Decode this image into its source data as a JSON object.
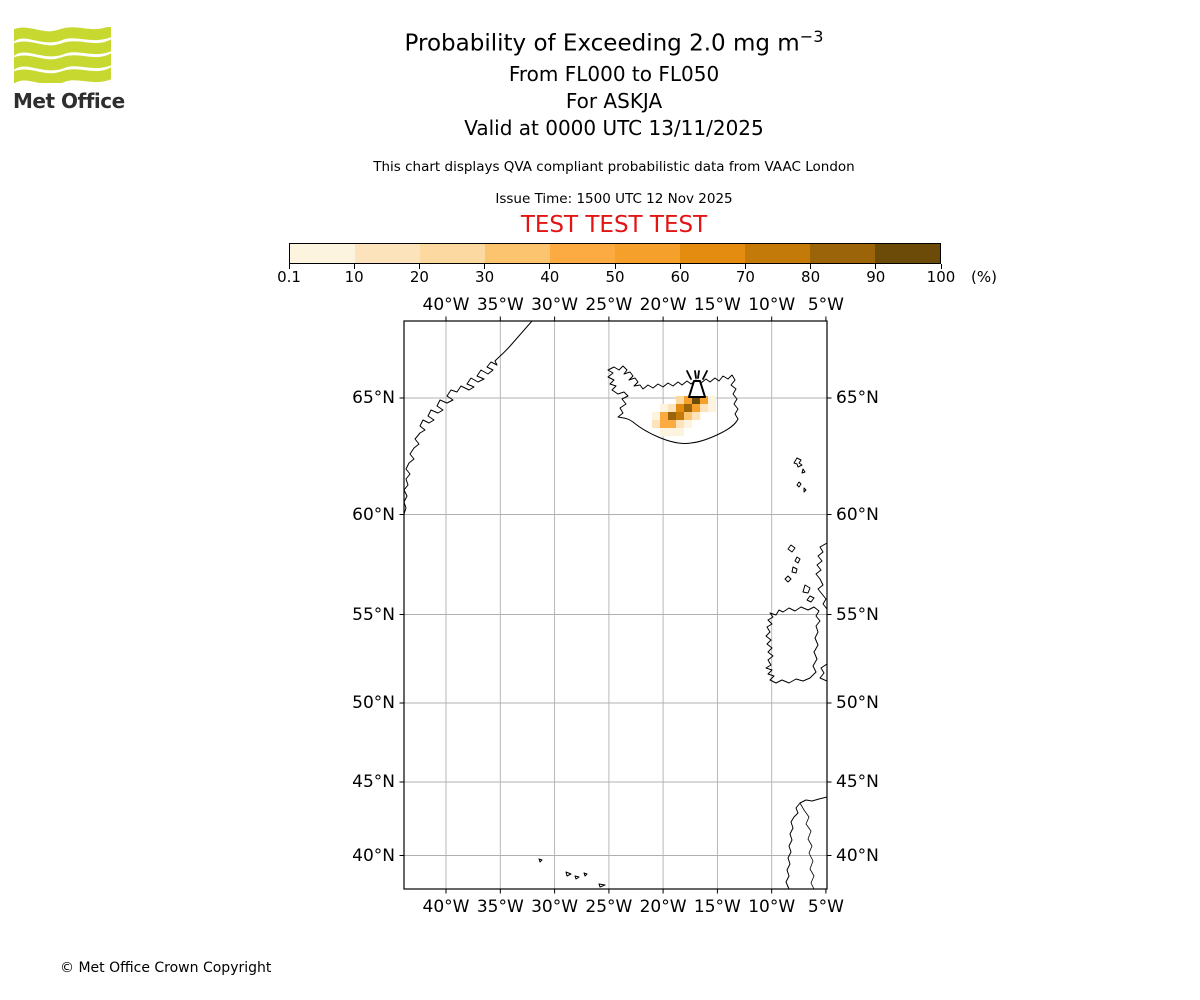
{
  "header": {
    "logo_text": "Met Office",
    "logo_green": "#c7d930",
    "title": "Probability of Exceeding 2.0 mg m",
    "title_sup": "−3",
    "subtitle1": "From FL000 to FL050",
    "subtitle2": "For ASKJA",
    "subtitle3": "Valid at 0000 UTC 13/11/2025",
    "description": "This chart displays QVA compliant probabilistic data from VAAC London",
    "issue_time": "Issue Time: 1500 UTC 12 Nov 2025",
    "test_banner": "TEST TEST TEST",
    "test_banner_color": "#e31414"
  },
  "chart_data": {
    "type": "heatmap",
    "title": "Probability of Exceeding 2.0 mg m⁻³ from FL000 to FL050 for ASKJA, valid 0000 UTC 13/11/2025",
    "legend_unit": "(%)",
    "colorbar": {
      "tick_labels": [
        "0.1",
        "10",
        "20",
        "30",
        "40",
        "50",
        "60",
        "70",
        "80",
        "90",
        "100"
      ],
      "unit": "(%)",
      "colors": [
        "#fdf4e0",
        "#fce3bb",
        "#fdd9a2",
        "#fdc470",
        "#fbab42",
        "#f5a02b",
        "#e38c10",
        "#c47a08",
        "#9c6409",
        "#6b4b07"
      ]
    },
    "volcano_name": "ASKJA",
    "plume_cells_note": "grid cells southwest of ASKJA volcano, level index = colorbar bucket (0 = 0.1-10% ... 9 = 90-100%)",
    "plume_cells": [
      {
        "c": 5,
        "r": 0,
        "l": 3
      },
      {
        "c": 3,
        "r": 1,
        "l": 2
      },
      {
        "c": 4,
        "r": 1,
        "l": 5
      },
      {
        "c": 5,
        "r": 1,
        "l": 9
      },
      {
        "c": 6,
        "r": 1,
        "l": 5
      },
      {
        "c": 7,
        "r": 1,
        "l": 0
      },
      {
        "c": 1,
        "r": 2,
        "l": 0
      },
      {
        "c": 2,
        "r": 2,
        "l": 1
      },
      {
        "c": 3,
        "r": 2,
        "l": 6
      },
      {
        "c": 4,
        "r": 2,
        "l": 8
      },
      {
        "c": 5,
        "r": 2,
        "l": 5
      },
      {
        "c": 6,
        "r": 2,
        "l": 1
      },
      {
        "c": 7,
        "r": 2,
        "l": 0
      },
      {
        "c": 0,
        "r": 3,
        "l": 0
      },
      {
        "c": 1,
        "r": 3,
        "l": 4
      },
      {
        "c": 2,
        "r": 3,
        "l": 8
      },
      {
        "c": 3,
        "r": 3,
        "l": 7
      },
      {
        "c": 4,
        "r": 3,
        "l": 3
      },
      {
        "c": 5,
        "r": 3,
        "l": 1
      },
      {
        "c": 0,
        "r": 4,
        "l": 1
      },
      {
        "c": 1,
        "r": 4,
        "l": 4
      },
      {
        "c": 2,
        "r": 4,
        "l": 4
      },
      {
        "c": 3,
        "r": 4,
        "l": 1
      },
      {
        "c": 4,
        "r": 4,
        "l": 0
      },
      {
        "c": 1,
        "r": 5,
        "l": 0
      },
      {
        "c": 2,
        "r": 5,
        "l": 0
      },
      {
        "c": 3,
        "r": 5,
        "l": 0
      }
    ]
  },
  "map": {
    "lon_labels": [
      "40°W",
      "35°W",
      "30°W",
      "25°W",
      "20°W",
      "15°W",
      "10°W",
      "5°W"
    ],
    "lat_labels": [
      "65°N",
      "60°N",
      "55°N",
      "50°N",
      "45°N",
      "40°N"
    ],
    "grid_color": "#b0b0b0"
  },
  "footer": {
    "copyright": "© Met Office Crown Copyright"
  }
}
